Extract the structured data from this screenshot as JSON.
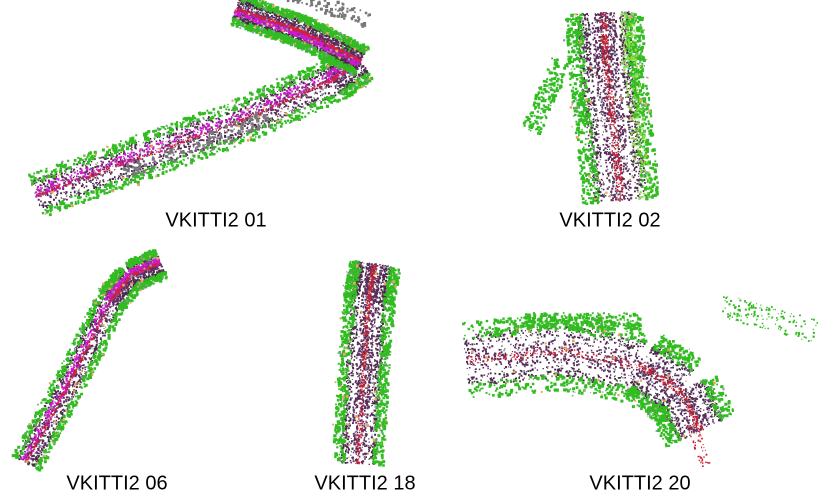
{
  "figure": {
    "panels": [
      {
        "caption": "VKITTI2 01"
      },
      {
        "caption": "VKITTI2 02"
      },
      {
        "caption": "VKITTI2 06"
      },
      {
        "caption": "VKITTI2 18"
      },
      {
        "caption": "VKITTI2 20"
      }
    ]
  }
}
